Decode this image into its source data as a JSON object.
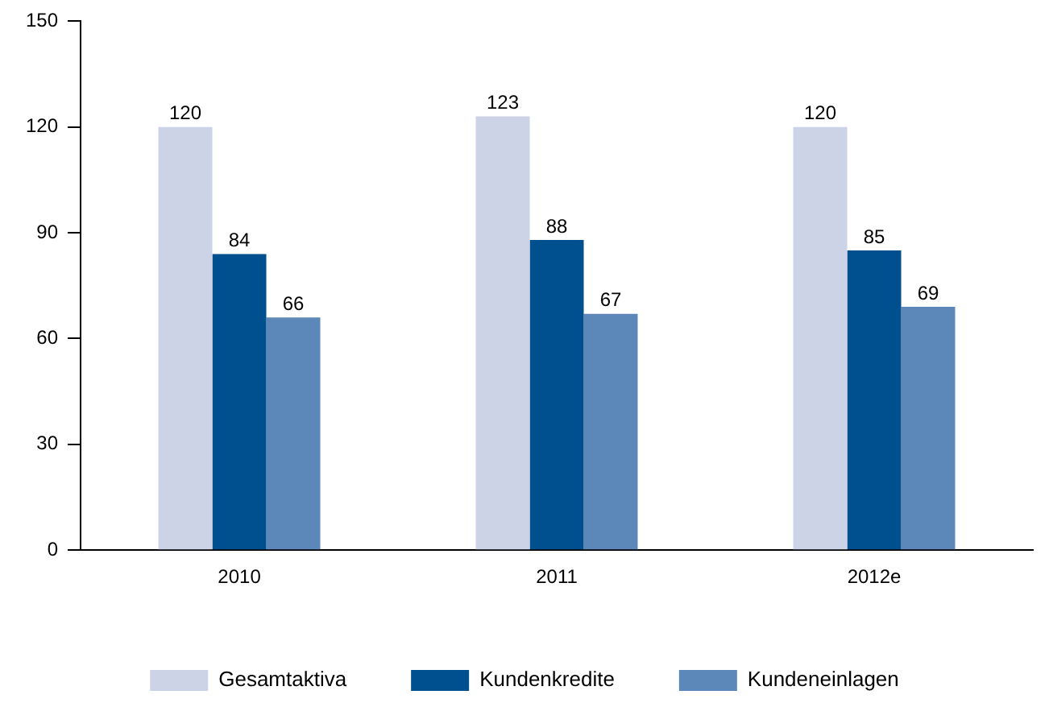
{
  "chart_data": {
    "type": "bar",
    "categories": [
      "2010",
      "2011",
      "2012e"
    ],
    "series": [
      {
        "name": "Gesamtaktiva",
        "color": "#cdd3e6",
        "values": [
          120,
          123,
          120
        ]
      },
      {
        "name": "Kundenkredite",
        "color": "#004f8f",
        "values": [
          84,
          88,
          85
        ]
      },
      {
        "name": "Kundeneinlagen",
        "color": "#5b87b9",
        "values": [
          66,
          67,
          69
        ]
      }
    ],
    "ylim": [
      0,
      150
    ],
    "yticks": [
      0,
      30,
      60,
      90,
      120,
      150
    ],
    "grid": false,
    "legend": "bottom",
    "data_labels": true
  }
}
